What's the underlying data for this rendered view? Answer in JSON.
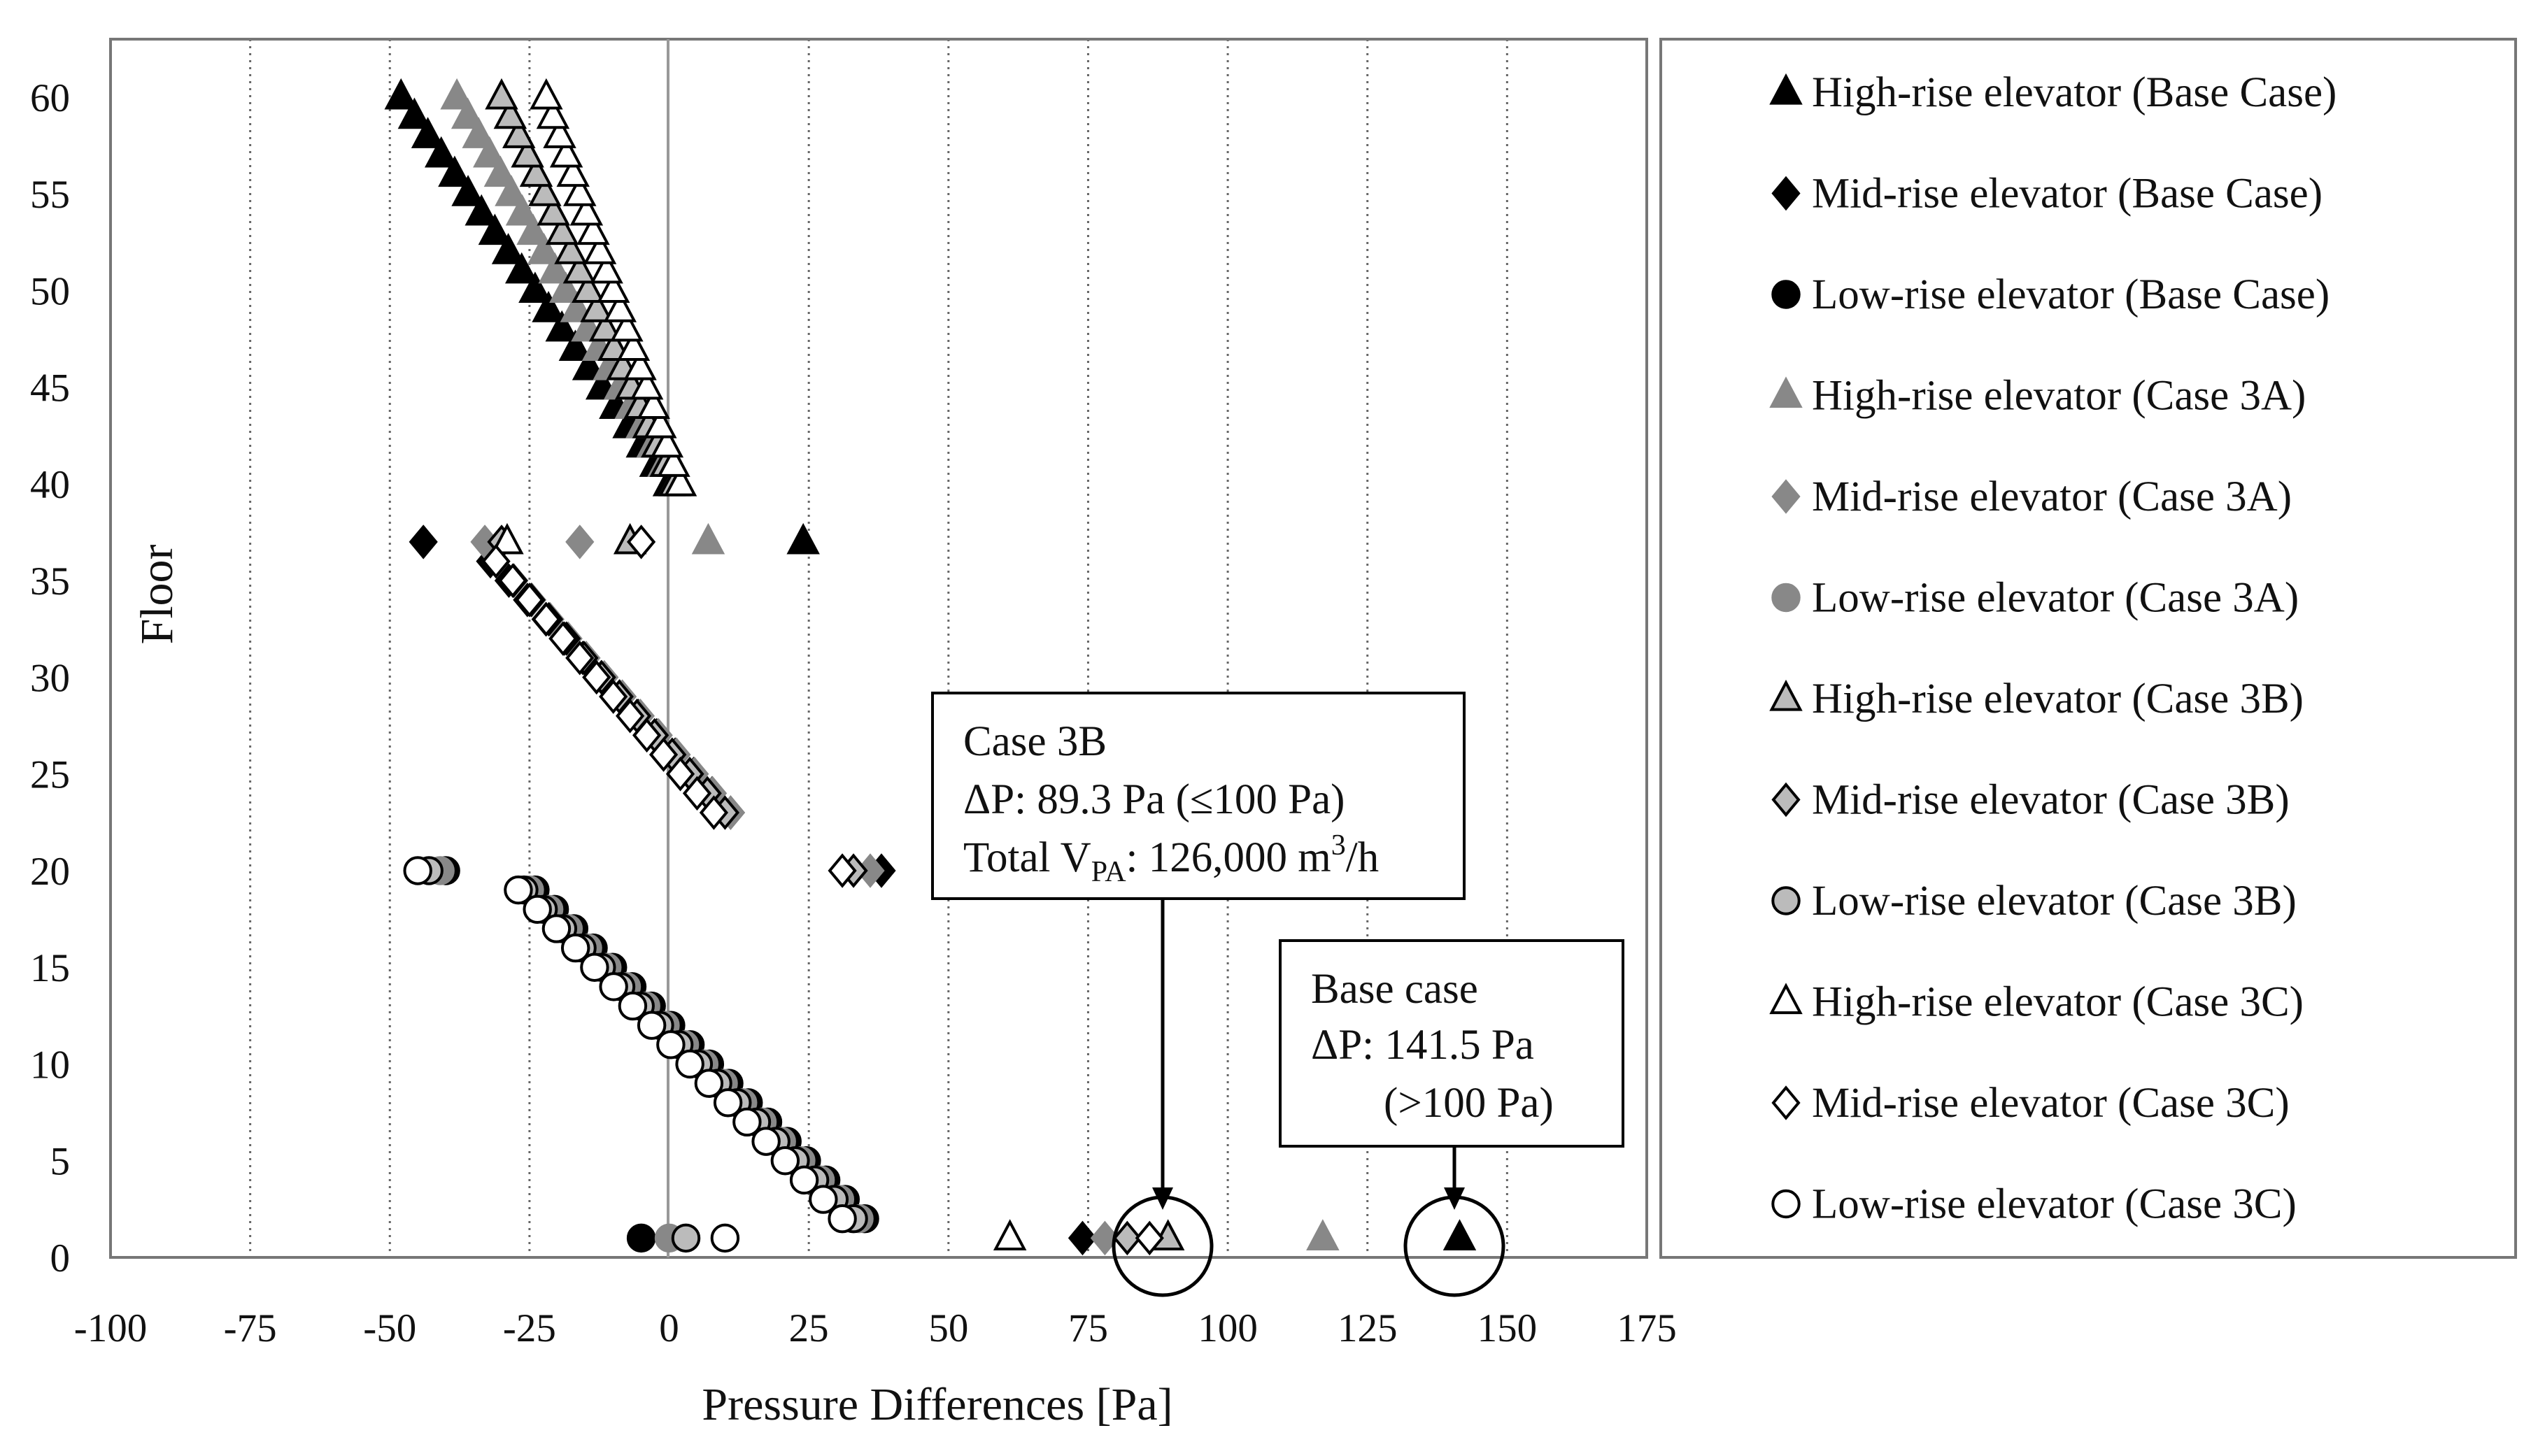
{
  "chart_data": {
    "type": "scatter",
    "title": "",
    "xlabel": "Pressure Differences  [Pa]",
    "ylabel": "Floor",
    "xlim": [
      -100,
      175
    ],
    "ylim": [
      0,
      63
    ],
    "xticks": [
      -100,
      -75,
      -50,
      -25,
      0,
      25,
      50,
      75,
      100,
      125,
      150,
      175
    ],
    "yticks": [
      0,
      5,
      10,
      15,
      20,
      25,
      30,
      35,
      40,
      45,
      50,
      55,
      60
    ],
    "grid": "vertical dotted",
    "legend_position": "right",
    "series": [
      {
        "name": "High-rise elevator (Base Case)",
        "marker": "triangle",
        "fill": "#000000",
        "stroke": "#000000",
        "points": [
          [
            24,
            37
          ],
          [
            141.5,
            1
          ]
        ],
        "runs": [
          {
            "floors": [
              40,
              60
            ],
            "x_at_start": 0,
            "x_at_end": -48
          }
        ]
      },
      {
        "name": "Mid-rise elevator (Base Case)",
        "marker": "diamond",
        "fill": "#000000",
        "stroke": "#000000",
        "points": [
          [
            -44,
            37
          ],
          [
            38,
            20
          ],
          [
            74,
            1
          ]
        ],
        "runs": [
          {
            "floors": [
              23,
              36
            ],
            "x_at_start": 11,
            "x_at_end": -32
          }
        ]
      },
      {
        "name": "Low-rise elevator (Base Case)",
        "marker": "circle",
        "fill": "#000000",
        "stroke": "#000000",
        "points": [
          [
            -40,
            20
          ],
          [
            -5,
            1
          ]
        ],
        "runs": [
          {
            "floors": [
              2,
              19
            ],
            "x_at_start": 35,
            "x_at_end": -24
          }
        ]
      },
      {
        "name": "High-rise elevator (Case 3A)",
        "marker": "triangle",
        "fill": "#888888",
        "stroke": "#888888",
        "points": [
          [
            7,
            37
          ],
          [
            117,
            1
          ]
        ],
        "runs": [
          {
            "floors": [
              40,
              60
            ],
            "x_at_start": 1,
            "x_at_end": -38
          }
        ]
      },
      {
        "name": "Mid-rise elevator  (Case 3A)",
        "marker": "diamond",
        "fill": "#888888",
        "stroke": "#888888",
        "points": [
          [
            -33,
            37
          ],
          [
            -16,
            37
          ],
          [
            36,
            20
          ],
          [
            78,
            1
          ]
        ],
        "runs": [
          {
            "floors": [
              23,
              36
            ],
            "x_at_start": 11,
            "x_at_end": -31
          }
        ]
      },
      {
        "name": "Low-rise elevator (Case 3A)",
        "marker": "circle",
        "fill": "#888888",
        "stroke": "#888888",
        "points": [
          [
            -41,
            20
          ],
          [
            0,
            1
          ]
        ],
        "runs": [
          {
            "floors": [
              2,
              19
            ],
            "x_at_start": 34,
            "x_at_end": -25
          }
        ]
      },
      {
        "name": "High-rise elevator  (Case 3B)",
        "marker": "triangle",
        "fill": "#bbbbbb",
        "stroke": "#000000",
        "points": [
          [
            -7,
            37
          ],
          [
            89.3,
            1
          ]
        ],
        "runs": [
          {
            "floors": [
              40,
              60
            ],
            "x_at_start": 1,
            "x_at_end": -30
          }
        ]
      },
      {
        "name": "Mid-rise elevator (Case 3B)",
        "marker": "diamond",
        "fill": "#bbbbbb",
        "stroke": "#000000",
        "points": [
          [
            -30,
            37
          ],
          [
            33,
            20
          ],
          [
            82,
            1
          ]
        ],
        "runs": [
          {
            "floors": [
              23,
              36
            ],
            "x_at_start": 10,
            "x_at_end": -31
          }
        ]
      },
      {
        "name": "Low-rise elevator (Case 3B)",
        "marker": "circle",
        "fill": "#bbbbbb",
        "stroke": "#000000",
        "points": [
          [
            -43,
            20
          ],
          [
            3,
            1
          ]
        ],
        "runs": [
          {
            "floors": [
              2,
              19
            ],
            "x_at_start": 33,
            "x_at_end": -26
          }
        ]
      },
      {
        "name": "High-rise elevator (Case 3C)",
        "marker": "triangle",
        "fill": "#ffffff",
        "stroke": "#000000",
        "points": [
          [
            -29,
            37
          ],
          [
            61,
            1
          ]
        ],
        "runs": [
          {
            "floors": [
              40,
              60
            ],
            "x_at_start": 2,
            "x_at_end": -22
          }
        ]
      },
      {
        "name": "Mid-rise elevator (Case 3C)",
        "marker": "diamond",
        "fill": "#ffffff",
        "stroke": "#000000",
        "points": [
          [
            -5,
            37
          ],
          [
            31,
            20
          ],
          [
            86,
            1
          ]
        ],
        "runs": [
          {
            "floors": [
              23,
              36
            ],
            "x_at_start": 8,
            "x_at_end": -31
          }
        ]
      },
      {
        "name": "Low-rise elevator (Case 3C)",
        "marker": "circle",
        "fill": "#ffffff",
        "stroke": "#000000",
        "points": [
          [
            -45,
            20
          ],
          [
            10,
            1
          ]
        ],
        "runs": [
          {
            "floors": [
              2,
              19
            ],
            "x_at_start": 31,
            "x_at_end": -27
          }
        ]
      }
    ],
    "annotations": [
      {
        "label_title": "Case 3B",
        "line1": "ΔP: 89.3 Pa (≤100 Pa)",
        "line2_prefix": "Total V",
        "line2_sub": "PA",
        "line2_value": ": 126,000  m",
        "line2_sup": "3",
        "line2_suffix": "/h",
        "target": [
          89.3,
          1
        ]
      },
      {
        "label_title": "Base case",
        "line1": "ΔP: 141.5 Pa",
        "line2": "(>100 Pa)",
        "target": [
          141.5,
          1
        ]
      }
    ]
  }
}
